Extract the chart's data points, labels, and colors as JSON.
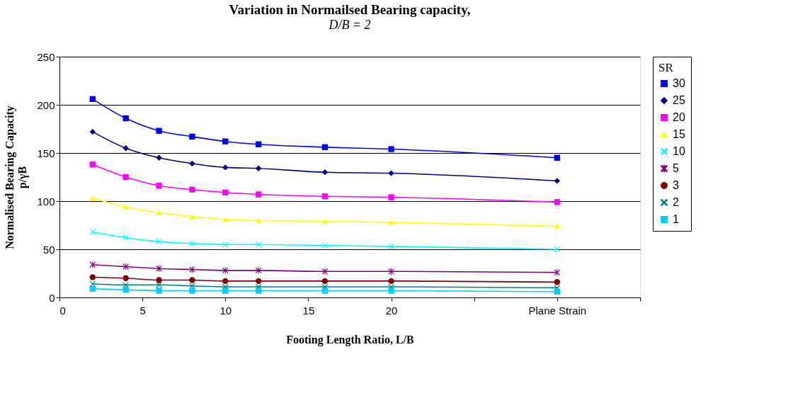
{
  "chart_data": {
    "type": "line",
    "title": "Variation in Normailsed Bearing capacity,",
    "subtitle": "D/B = 2",
    "xlabel": "Footing Length Ratio, L/B",
    "ylabel": "Normalised Bearing Capacity\np/γB",
    "legend_title": "SR",
    "x": [
      2,
      4,
      6,
      8,
      10,
      12,
      16,
      20,
      30
    ],
    "xlim": [
      0,
      35
    ],
    "xticks": [
      0,
      5,
      10,
      15,
      20,
      {
        "value": 25,
        "label": null
      },
      {
        "value": 30,
        "label": "Plane Strain"
      },
      {
        "value": 35,
        "label": null
      }
    ],
    "ylim": [
      0,
      250
    ],
    "yticks": [
      0,
      50,
      100,
      150,
      200,
      250
    ],
    "grid": "y",
    "legend": "right",
    "line_style": "solid",
    "series": [
      {
        "name": "30",
        "color": "#0000ff",
        "marker": "square",
        "values": [
          206,
          186,
          173,
          167,
          162,
          159,
          156,
          154,
          145
        ]
      },
      {
        "name": "25",
        "color": "#000080",
        "marker": "diamond",
        "values": [
          172,
          155,
          145,
          139,
          135,
          134,
          130,
          129,
          121
        ]
      },
      {
        "name": "20",
        "color": "#ff00ff",
        "marker": "square",
        "values": [
          138,
          125,
          116,
          112,
          109,
          107,
          105,
          104,
          99
        ]
      },
      {
        "name": "15",
        "color": "#ffff00",
        "marker": "triangle",
        "values": [
          103,
          94,
          88,
          84,
          81,
          80,
          79,
          78,
          74
        ]
      },
      {
        "name": "10",
        "color": "#00ffff",
        "marker": "cross",
        "values": [
          68,
          62,
          58,
          56,
          55,
          55,
          54,
          53,
          50
        ]
      },
      {
        "name": "5",
        "color": "#800080",
        "marker": "star",
        "values": [
          34,
          32,
          30,
          29,
          28,
          28,
          27,
          27,
          26
        ]
      },
      {
        "name": "3",
        "color": "#800000",
        "marker": "circle",
        "values": [
          21,
          20,
          18,
          18,
          17,
          17,
          17,
          17,
          16
        ]
      },
      {
        "name": "2",
        "color": "#008080",
        "marker": "cross",
        "values": [
          14,
          13,
          13,
          12,
          11,
          11,
          11,
          11,
          10
        ]
      },
      {
        "name": "1",
        "color": "#00ccff",
        "marker": "square",
        "values": [
          9,
          8,
          7,
          7,
          7,
          7,
          7,
          7,
          6
        ]
      }
    ]
  }
}
